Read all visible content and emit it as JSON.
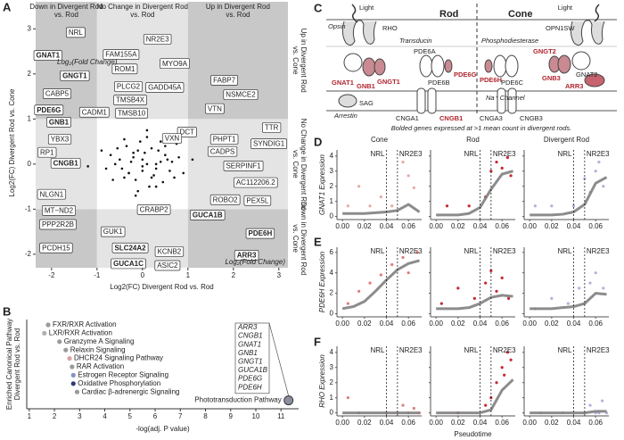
{
  "panels": [
    "A",
    "B",
    "C",
    "D",
    "E",
    "F"
  ],
  "chart_data": [
    {
      "type": "scatter",
      "xlabel": "Log2(FC) Divergent Rod vs. Rod",
      "ylabel": "Log2(FC) Divergent Rod vs. Cone",
      "annotations": [
        "Log₂(Fold Change)",
        "Log₂(Fold Change)"
      ],
      "xlim": [
        -2.35,
        3.2
      ],
      "ylim": [
        -2.3,
        3.6
      ],
      "xticks": [
        -2,
        -1,
        0,
        1,
        2,
        3
      ],
      "yticks": [
        -2,
        -1,
        0,
        1,
        2,
        3
      ],
      "region_bounds": [
        -1,
        1
      ],
      "column_headers": [
        [
          "Down in Divergent Rod",
          "vs. Rod"
        ],
        [
          "No Change in Divergent Rod",
          "vs. Rod"
        ],
        [
          "Up in Divergent Rod",
          "vs. Rod"
        ]
      ],
      "row_headers": [
        [
          "Up in Divergent Rod",
          "vs. Cone"
        ],
        [
          "No Change in Divergent Rod",
          "vs. Cone"
        ],
        [
          "Down in Divergent Rod",
          "vs. Cone"
        ]
      ],
      "color": "#111111",
      "highlight_color": "#b0262f",
      "points": {
        "x": [
          -0.5,
          -0.3,
          -0.1,
          0.1,
          0.3,
          0.5,
          -0.4,
          -0.2,
          0,
          0.2,
          0.4,
          0.6,
          -0.6,
          -0.35,
          -0.15,
          0.05,
          0.25,
          0.45,
          -0.25,
          0.15,
          -0.05,
          0.35,
          -0.45,
          0.55,
          -0.7,
          0.7,
          -0.8,
          0.8,
          -0.1,
          0.1,
          -0.3,
          0.3,
          0,
          -0.55,
          0.5,
          -0.2,
          0.2,
          0.65,
          -0.65,
          0.9,
          -0.9,
          0.0,
          0.4,
          -0.4,
          1.1,
          0.75,
          -1.2,
          0.1,
          -0.15,
          0.3
        ],
        "y": [
          0.1,
          -0.2,
          0.3,
          0.0,
          -0.1,
          0.2,
          -0.3,
          0.15,
          -0.05,
          0.35,
          0.05,
          -0.15,
          0.0,
          0.4,
          -0.35,
          0.25,
          -0.25,
          -0.4,
          0.05,
          -0.5,
          0.5,
          0.3,
          -0.1,
          0.1,
          0.2,
          -0.3,
          -0.1,
          0.15,
          -0.6,
          0.6,
          -0.2,
          -0.5,
          0.1,
          0.35,
          0.4,
          0.25,
          -0.3,
          0.05,
          -0.35,
          -0.2,
          0.3,
          -0.15,
          0.5,
          0.55,
          0.1,
          0.45,
          -0.05,
          0.75,
          -0.7,
          0.0
        ]
      },
      "labels": [
        {
          "text": "NRL",
          "x": -1.47,
          "y": 2.92,
          "highlight": false
        },
        {
          "text": "GNAT1",
          "x": -2.08,
          "y": 2.41,
          "highlight": true
        },
        {
          "text": "GNGT1",
          "x": -1.49,
          "y": 1.96,
          "highlight": true
        },
        {
          "text": "CABP5",
          "x": -1.88,
          "y": 1.56,
          "highlight": false
        },
        {
          "text": "PDE6G",
          "x": -2.06,
          "y": 1.2,
          "highlight": true
        },
        {
          "text": "GNB1",
          "x": -1.84,
          "y": 0.93,
          "highlight": true
        },
        {
          "text": "CADM1",
          "x": -1.06,
          "y": 1.15,
          "highlight": false
        },
        {
          "text": "YBX3",
          "x": -1.82,
          "y": 0.55,
          "highlight": false
        },
        {
          "text": "RP1",
          "x": -2.1,
          "y": 0.26,
          "highlight": false
        },
        {
          "text": "CNGB1",
          "x": -1.69,
          "y": 0.02,
          "highlight": true
        },
        {
          "text": "NLGN1",
          "x": -2.0,
          "y": -0.67,
          "highlight": false
        },
        {
          "text": "MT−ND2",
          "x": -1.84,
          "y": -1.03,
          "highlight": false
        },
        {
          "text": "PPP2R2B",
          "x": -1.86,
          "y": -1.34,
          "highlight": false
        },
        {
          "text": "PCDH15",
          "x": -1.9,
          "y": -1.86,
          "highlight": false
        },
        {
          "text": "FAM155A",
          "x": -0.47,
          "y": 2.43,
          "highlight": false
        },
        {
          "text": "ROM1",
          "x": -0.39,
          "y": 2.11,
          "highlight": false
        },
        {
          "text": "NR2E3",
          "x": 0.33,
          "y": 2.77,
          "highlight": false
        },
        {
          "text": "MYO9A",
          "x": 0.71,
          "y": 2.23,
          "highlight": false
        },
        {
          "text": "PLCG2",
          "x": -0.31,
          "y": 1.72,
          "highlight": false
        },
        {
          "text": "GADD45A",
          "x": 0.49,
          "y": 1.7,
          "highlight": false
        },
        {
          "text": "TMSB4X",
          "x": -0.27,
          "y": 1.42,
          "highlight": false
        },
        {
          "text": "TMSB10",
          "x": -0.24,
          "y": 1.13,
          "highlight": false
        },
        {
          "text": "FABP7",
          "x": 1.8,
          "y": 1.86,
          "highlight": false
        },
        {
          "text": "NSMCE2",
          "x": 2.16,
          "y": 1.54,
          "highlight": false
        },
        {
          "text": "VTN",
          "x": 1.59,
          "y": 1.23,
          "highlight": false
        },
        {
          "text": "TTR",
          "x": 2.84,
          "y": 0.81,
          "highlight": false
        },
        {
          "text": "DCT",
          "x": 0.98,
          "y": 0.71,
          "highlight": false
        },
        {
          "text": "VXN",
          "x": 0.65,
          "y": 0.57,
          "highlight": false
        },
        {
          "text": "PHPT1",
          "x": 1.8,
          "y": 0.55,
          "highlight": false
        },
        {
          "text": "SYNDIG1",
          "x": 2.78,
          "y": 0.45,
          "highlight": false
        },
        {
          "text": "CADPS",
          "x": 1.76,
          "y": 0.28,
          "highlight": false
        },
        {
          "text": "SERPINF1",
          "x": 2.22,
          "y": -0.04,
          "highlight": false
        },
        {
          "text": "AC112206.2",
          "x": 2.49,
          "y": -0.41,
          "highlight": false
        },
        {
          "text": "ROBO2",
          "x": 1.82,
          "y": -0.79,
          "highlight": false
        },
        {
          "text": "PEX5L",
          "x": 2.53,
          "y": -0.81,
          "highlight": false
        },
        {
          "text": "GUCA1B",
          "x": 1.43,
          "y": -1.13,
          "highlight": true
        },
        {
          "text": "CRABP2",
          "x": 0.25,
          "y": -1.01,
          "highlight": false
        },
        {
          "text": "GUK1",
          "x": -0.65,
          "y": -1.5,
          "highlight": false
        },
        {
          "text": "PDE6H",
          "x": 2.59,
          "y": -1.54,
          "highlight": true
        },
        {
          "text": "SLC24A2",
          "x": -0.27,
          "y": -1.86,
          "highlight": true
        },
        {
          "text": "KCNB2",
          "x": 0.59,
          "y": -1.94,
          "highlight": false
        },
        {
          "text": "GUCA1C",
          "x": -0.31,
          "y": -2.21,
          "highlight": true
        },
        {
          "text": "ASIC2",
          "x": 0.55,
          "y": -2.25,
          "highlight": false
        },
        {
          "text": "ARR3",
          "x": 2.29,
          "y": -2.02,
          "highlight": true
        }
      ]
    },
    {
      "type": "dot",
      "xlabel": "-log(adj. P value)",
      "ylabel": [
        "Enriched Canonical Pathway",
        "Divergent Rod vs. Rod"
      ],
      "xlim": [
        0.9,
        11.7
      ],
      "xticks": [
        1,
        2,
        3,
        4,
        5,
        6,
        7,
        8,
        9,
        10,
        11
      ],
      "categories": [
        "FXR/RXR Activation",
        "LXR/RXR Activation",
        "Granzyme A Signaling",
        "Relaxin Signaling",
        "DHCR24 Signaling Pathway",
        "RAR Activation",
        "Estrogen Receptor Signaling",
        "Oxidative Phosphorylation",
        "Cardiac β-adrenergic Signaling",
        "Phototransduction Pathway"
      ],
      "values": [
        1.75,
        1.6,
        2.2,
        2.45,
        2.6,
        2.7,
        2.75,
        2.75,
        2.9,
        11.3
      ],
      "colors": [
        "#9a9a9a",
        "#b0b0b0",
        "#9a9a9a",
        "#9a9a9a",
        "#d9a3a3",
        "#9a9a9a",
        "#8594c6",
        "#2e3a7c",
        "#9a9a9a",
        "#8a8f9c"
      ],
      "gene_list": {
        "pathway": "Phototransduction Pathway",
        "genes": [
          "ARR3",
          "CNGB1",
          "GNAT1",
          "GNB1",
          "GNGT1",
          "GUCA1B",
          "PDE6G",
          "PDE6H"
        ],
        "colors": [
          "#c0272d",
          "#3b6fb6",
          "#3b6fb6",
          "#3b6fb6",
          "#3b6fb6",
          "#c0272d",
          "#3b6fb6",
          "#c0272d"
        ]
      }
    },
    {
      "type": "pseudotime_grid",
      "columns": [
        "Cone",
        "Rod",
        "Divergent Rod"
      ],
      "xlabel": "Pseudotime",
      "xlim": [
        -0.005,
        0.072
      ],
      "xticks": [
        {
          "value": 0,
          "label": "0.00"
        },
        0.02,
        0.04,
        0.06
      ],
      "markers": [
        {
          "label": "NRL",
          "x": 0.04
        },
        {
          "label": "NR2E3",
          "x": 0.05
        }
      ],
      "trend_x": [
        0,
        0.01,
        0.02,
        0.03,
        0.04,
        0.05,
        0.06,
        0.07
      ],
      "trend_color": "#7f7f7f",
      "rows": [
        {
          "ylabel": "GNAT1 Expression",
          "ylim": [
            -0.2,
            4.4
          ],
          "yticks": [
            0,
            1,
            2,
            3,
            4
          ],
          "panels": [
            {
              "color": "#e8a8a8",
              "points": {
                "x": [
                  0.005,
                  0.015,
                  0.025,
                  0.035,
                  0.045,
                  0.055,
                  0.06,
                  0.065
                ],
                "y": [
                  0.7,
                  2.0,
                  0.7,
                  1.3,
                  0.7,
                  3.6,
                  2.7,
                  1.9
                ]
              },
              "trend": [
                0.2,
                0.2,
                0.2,
                0.25,
                0.3,
                0.4,
                0.8,
                0.3
              ]
            },
            {
              "color": "#c62a30",
              "points": {
                "x": [
                  0.01,
                  0.03,
                  0.045,
                  0.05,
                  0.055,
                  0.06,
                  0.065,
                  0.068
                ],
                "y": [
                  0.7,
                  0.7,
                  1.3,
                  3.0,
                  3.6,
                  3.2,
                  3.9,
                  2.7
                ]
              },
              "trend": [
                0.1,
                0.1,
                0.1,
                0.2,
                0.6,
                1.8,
                2.8,
                3.0
              ]
            },
            {
              "color": "#b3b0dc",
              "points": {
                "x": [
                  0.005,
                  0.02,
                  0.04,
                  0.05,
                  0.055,
                  0.06,
                  0.063,
                  0.067
                ],
                "y": [
                  0.7,
                  0.7,
                  0.7,
                  2.5,
                  1.6,
                  3.0,
                  3.6,
                  2.0
                ]
              },
              "trend": [
                0.1,
                0.1,
                0.1,
                0.15,
                0.3,
                0.8,
                2.2,
                2.6
              ]
            }
          ]
        },
        {
          "ylabel": "PDE6H Expression",
          "ylim": [
            -0.3,
            6.5
          ],
          "yticks": [
            0,
            2,
            4,
            6
          ],
          "panels": [
            {
              "color": "#e07b7b",
              "points": {
                "x": [
                  0.005,
                  0.015,
                  0.025,
                  0.035,
                  0.045,
                  0.055,
                  0.06,
                  0.068
                ],
                "y": [
                  1.0,
                  2.2,
                  3.0,
                  3.8,
                  4.8,
                  5.5,
                  4.0,
                  6.0
                ]
              },
              "trend": [
                0.5,
                0.7,
                1.2,
                2.2,
                3.3,
                4.3,
                4.9,
                5.2
              ]
            },
            {
              "color": "#c62a30",
              "points": {
                "x": [
                  0.005,
                  0.02,
                  0.035,
                  0.045,
                  0.05,
                  0.055,
                  0.06,
                  0.066
                ],
                "y": [
                  1.0,
                  2.5,
                  1.5,
                  3.0,
                  4.2,
                  2.2,
                  3.5,
                  1.5
                ]
              },
              "trend": [
                0.5,
                0.5,
                0.5,
                0.6,
                1.0,
                1.6,
                1.8,
                1.7
              ]
            },
            {
              "color": "#b3b0dc",
              "points": {
                "x": [
                  0.005,
                  0.02,
                  0.035,
                  0.045,
                  0.05,
                  0.055,
                  0.06,
                  0.067
                ],
                "y": [
                  0.5,
                  1.5,
                  1.0,
                  2.5,
                  1.0,
                  3.0,
                  4.0,
                  2.5
                ]
              },
              "trend": [
                0.5,
                0.5,
                0.5,
                0.6,
                0.7,
                1.0,
                2.0,
                1.9
              ]
            }
          ]
        },
        {
          "ylabel": "RHO Expression",
          "ylim": [
            -0.2,
            4.4
          ],
          "yticks": [
            0,
            1,
            2,
            3,
            4
          ],
          "panels": [
            {
              "color": "#d98080",
              "points": {
                "x": [
                  0.005,
                  0.015,
                  0.04,
                  0.05,
                  0.055,
                  0.06,
                  0.065,
                  0.07
                ],
                "y": [
                  1.0,
                  0,
                  0,
                  0,
                  0.5,
                  0,
                  0.3,
                  0
                ]
              },
              "trend": [
                0,
                0,
                0,
                0,
                0,
                0,
                0,
                0
              ]
            },
            {
              "color": "#c62a30",
              "points": {
                "x": [
                  0.02,
                  0.045,
                  0.05,
                  0.055,
                  0.06,
                  0.062,
                  0.065,
                  0.068
                ],
                "y": [
                  0,
                  0.5,
                  1.0,
                  2.0,
                  3.0,
                  2.5,
                  4.0,
                  3.5
                ]
              },
              "trend": [
                0,
                0,
                0,
                0,
                0,
                0.2,
                1.5,
                2.2
              ]
            },
            {
              "color": "#b3b0dc",
              "points": {
                "x": [
                  0.01,
                  0.03,
                  0.05,
                  0.055,
                  0.06,
                  0.063,
                  0.066,
                  0.07
                ],
                "y": [
                  0,
                  0,
                  0,
                  0.5,
                  0,
                  0,
                  0.8,
                  0
                ]
              },
              "trend": [
                0,
                0,
                0,
                0,
                0,
                0,
                0.1,
                0.1
              ]
            }
          ]
        }
      ]
    }
  ],
  "diagram": {
    "texts": [
      "Light",
      "Rod",
      "Cone",
      "Light",
      "Opsin",
      "RHO",
      "OPN1SW",
      "Transducin",
      "Phosphodiesterase",
      "GNAT1",
      "GNB1",
      "GNGT1",
      "PDE6A",
      "PDE6B",
      "PDE6G",
      "PDE6H",
      "PDE6C",
      "GNGT2",
      "GNAT2",
      "GNB3",
      "ARR3",
      "SAG",
      "Arrestin",
      "Na⁺ Channel",
      "CNGA1",
      "CNGB1",
      "CNGA3",
      "CNGB3",
      "Bolded genes expressed at >1 mean count in divergent rods."
    ]
  }
}
